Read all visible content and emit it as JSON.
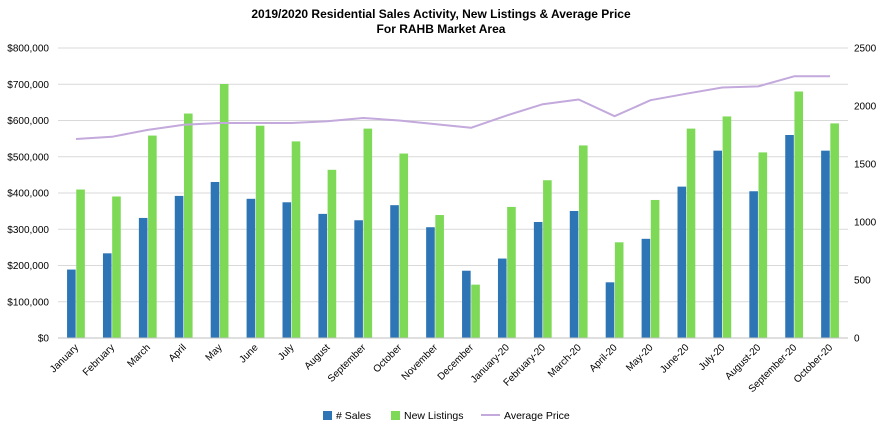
{
  "chart_data": {
    "type": "bar",
    "title": "2019/2020 Residential Sales Activity, New Listings & Average Price",
    "subtitle": "For RAHB Market Area",
    "categories": [
      "January",
      "February",
      "March",
      "April",
      "May",
      "June",
      "July",
      "August",
      "September",
      "October",
      "November",
      "December",
      "January-20",
      "February-20",
      "March-20",
      "April-20",
      "May-20",
      "June-20",
      "July-20",
      "August-20",
      "September-20",
      "October-20"
    ],
    "series": [
      {
        "name": "# Sales",
        "type": "bar",
        "axis": "right",
        "color": "#2e75b6",
        "values": [
          590,
          730,
          1035,
          1225,
          1345,
          1200,
          1170,
          1070,
          1015,
          1145,
          955,
          580,
          685,
          1000,
          1095,
          480,
          855,
          1305,
          1615,
          1265,
          1750,
          1615
        ]
      },
      {
        "name": "New Listings",
        "type": "bar",
        "axis": "right",
        "color": "#7ed957",
        "values": [
          1280,
          1220,
          1745,
          1935,
          2190,
          1830,
          1695,
          1450,
          1805,
          1590,
          1060,
          460,
          1130,
          1360,
          1660,
          825,
          1190,
          1805,
          1910,
          1600,
          2125,
          1850
        ]
      },
      {
        "name": "Average Price",
        "type": "line",
        "axis": "left",
        "color": "#c3a9dc",
        "values": [
          549000,
          555000,
          574000,
          588000,
          593000,
          593000,
          593000,
          598000,
          607000,
          600000,
          590000,
          580000,
          614000,
          645000,
          658000,
          612000,
          656000,
          674000,
          691000,
          694000,
          722000,
          722000
        ]
      }
    ],
    "ylim_left": [
      0,
      800000
    ],
    "ylim_right": [
      0,
      2500
    ],
    "yticks_left": [
      "$0",
      "$100,000",
      "$200,000",
      "$300,000",
      "$400,000",
      "$500,000",
      "$600,000",
      "$700,000",
      "$800,000"
    ],
    "yticks_right": [
      "0",
      "500",
      "1000",
      "1500",
      "2000",
      "2500"
    ],
    "grid": true,
    "legend": "bottom"
  }
}
